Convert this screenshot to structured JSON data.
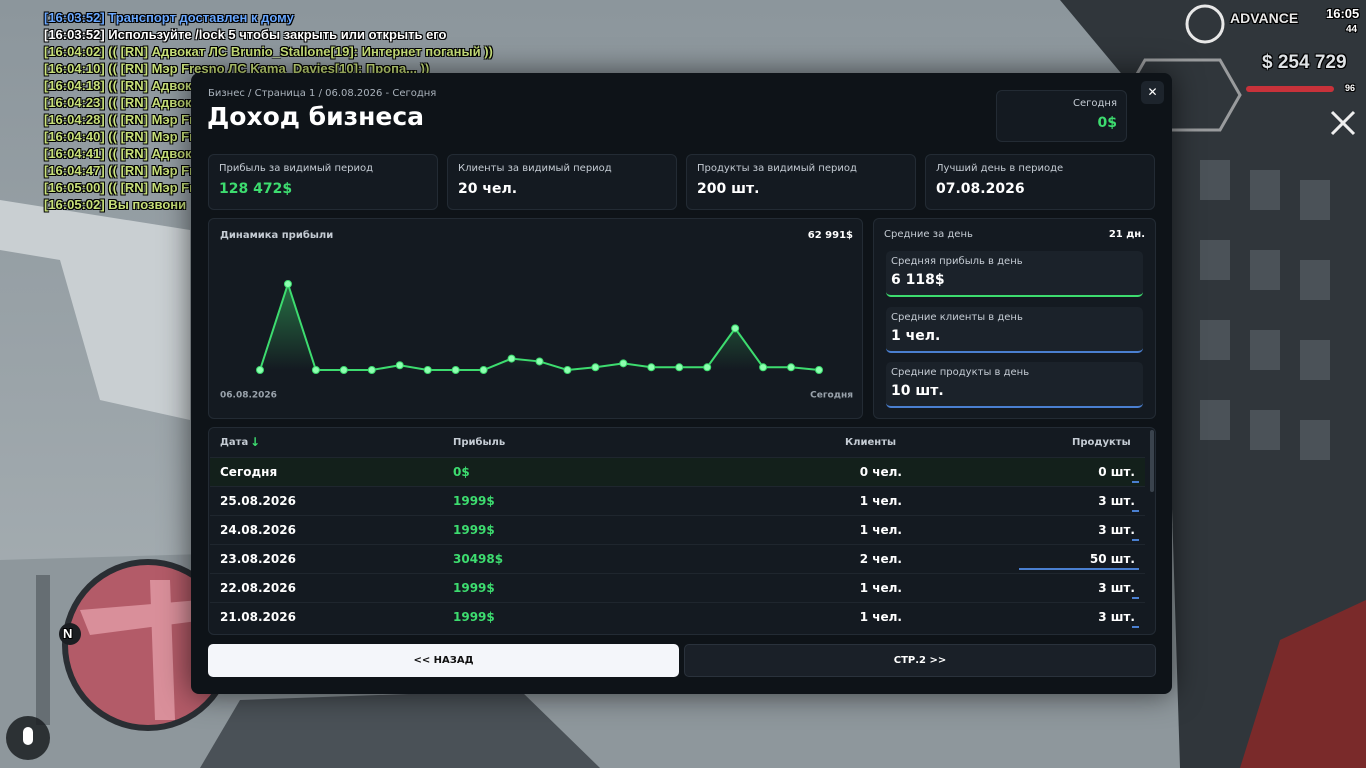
{
  "hud": {
    "chat": [
      {
        "text": "[16:03:52] Транспорт доставлен к дому",
        "color": "#6aa8ff"
      },
      {
        "text": "[16:03:52] Используйте /lock 5 чтобы закрыть или открыть его",
        "color": "#ffffff"
      },
      {
        "text": "[16:04:02] (( [RN] Адвокат ЛС Brunio_Stallone[19]: Интернет поганый ))",
        "color": "#c8e07a"
      },
      {
        "text": "[16:04:10] (( [RN] Мэр Fresno ЛС Kama_Davies[10]: Пропа... ))",
        "color": "#c8e07a"
      },
      {
        "text": "[16:04:18] (( [RN] Адвок",
        "color": "#c8e07a"
      },
      {
        "text": "[16:04:23] (( [RN] Адвок",
        "color": "#c8e07a"
      },
      {
        "text": "[16:04:28] (( [RN] Мэр Fr",
        "color": "#c8e07a"
      },
      {
        "text": "[16:04:40] (( [RN] Мэр Fr",
        "color": "#c8e07a"
      },
      {
        "text": "[16:04:41] (( [RN] Адвок",
        "color": "#c8e07a"
      },
      {
        "text": "[16:04:47] (( [RN] Мэр Fr",
        "color": "#c8e07a"
      },
      {
        "text": "[16:05:00] (( [RN] Мэр Fr",
        "color": "#c8e07a"
      },
      {
        "text": "[16:05:02] Вы позвони",
        "color": "#c8e07a"
      }
    ],
    "brand": "ADVANCE",
    "time": "16:05",
    "online": "44",
    "money": "$ 254 729",
    "health": "96",
    "compass": "N"
  },
  "modal": {
    "breadcrumb": "Бизнес / Страница 1 / 06.08.2026 - Сегодня",
    "title": "Доход бизнеса",
    "today": {
      "label": "Сегодня",
      "value": "0$"
    },
    "close": "✕",
    "stats": [
      {
        "label": "Прибыль за видимый период",
        "value": "128 472$"
      },
      {
        "label": "Клиенты за видимый период",
        "value": "20 чел."
      },
      {
        "label": "Продукты за видимый период",
        "value": "200 шт."
      },
      {
        "label": "Лучший день в периоде",
        "value": "07.08.2026"
      }
    ],
    "averages": {
      "title": "Средние за день",
      "days": "21 дн.",
      "items": [
        {
          "label": "Средняя прибыль в день",
          "value": "6 118$",
          "color": "#3ddc6f"
        },
        {
          "label": "Средние клиенты в день",
          "value": "1 чел.",
          "color": "#4a7fd0"
        },
        {
          "label": "Средние продукты в день",
          "value": "10 шт.",
          "color": "#4a7fd0"
        }
      ]
    },
    "table": {
      "columns": [
        "Дата",
        "Прибыль",
        "Клиенты",
        "Продукты"
      ],
      "sort_indicator": "↓",
      "rows": [
        {
          "date": "Сегодня",
          "profit": "0$",
          "clients": "0 чел.",
          "products": {
            "value": 0,
            "label": "0 шт."
          }
        },
        {
          "date": "25.08.2026",
          "profit": "1999$",
          "clients": "1 чел.",
          "products": {
            "value": 3,
            "label": "3 шт."
          }
        },
        {
          "date": "24.08.2026",
          "profit": "1999$",
          "clients": "1 чел.",
          "products": {
            "value": 3,
            "label": "3 шт."
          }
        },
        {
          "date": "23.08.2026",
          "profit": "30498$",
          "clients": "2 чел.",
          "products": {
            "value": 50,
            "label": "50 шт."
          }
        },
        {
          "date": "22.08.2026",
          "profit": "1999$",
          "clients": "1 чел.",
          "products": {
            "value": 3,
            "label": "3 шт."
          }
        },
        {
          "date": "21.08.2026",
          "profit": "1999$",
          "clients": "1 чел.",
          "products": {
            "value": 3,
            "label": "3 шт."
          }
        }
      ]
    },
    "buttons": [
      "<< НАЗАД",
      "СТР.2 >>"
    ]
  },
  "chart_data": {
    "type": "line",
    "title": "Динамика прибыли",
    "max_label": "62 991$",
    "categories": [
      "06.08.2026",
      null,
      null,
      null,
      null,
      null,
      null,
      null,
      null,
      null,
      null,
      null,
      null,
      null,
      null,
      null,
      null,
      null,
      null,
      null,
      "Сегодня"
    ],
    "values": [
      0,
      62991,
      0,
      0,
      0,
      3485,
      0,
      0,
      0,
      8360,
      6270,
      0,
      1999,
      4874,
      1999,
      1999,
      1999,
      30498,
      1999,
      1999,
      0
    ],
    "color": "#3ddc6f",
    "ylim": [
      0,
      62991
    ]
  }
}
